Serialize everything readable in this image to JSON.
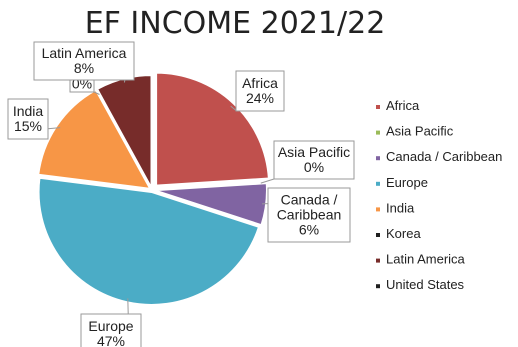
{
  "chart_data": {
    "type": "pie",
    "title": "EF INCOME 2021/22",
    "slices": [
      {
        "name": "Africa",
        "label_lines": [
          "Africa",
          "24%"
        ],
        "value": 24,
        "color": "#c0504d"
      },
      {
        "name": "Asia Pacific",
        "label_lines": [
          "Asia Pacific",
          "0%"
        ],
        "value": 0,
        "color": "#9bbb59"
      },
      {
        "name": "Canada / Caribbean",
        "label_lines": [
          "Canada /",
          "Caribbean",
          "6%"
        ],
        "value": 6,
        "color": "#8064a2"
      },
      {
        "name": "Europe",
        "label_lines": [
          "Europe",
          "47%"
        ],
        "value": 47,
        "color": "#4bacc6"
      },
      {
        "name": "India",
        "label_lines": [
          "India",
          "15%"
        ],
        "value": 15,
        "color": "#f79646"
      },
      {
        "name": "Korea",
        "label_lines": [
          "0%"
        ],
        "value": 0,
        "color": "#1f1f1f"
      },
      {
        "name": "Latin America",
        "label_lines": [
          "Latin America",
          "8%"
        ],
        "value": 8,
        "color": "#772c2a"
      },
      {
        "name": "United States",
        "label_lines": [],
        "value": 0,
        "color": "#1f1f1f"
      }
    ],
    "legend_position": "right"
  }
}
